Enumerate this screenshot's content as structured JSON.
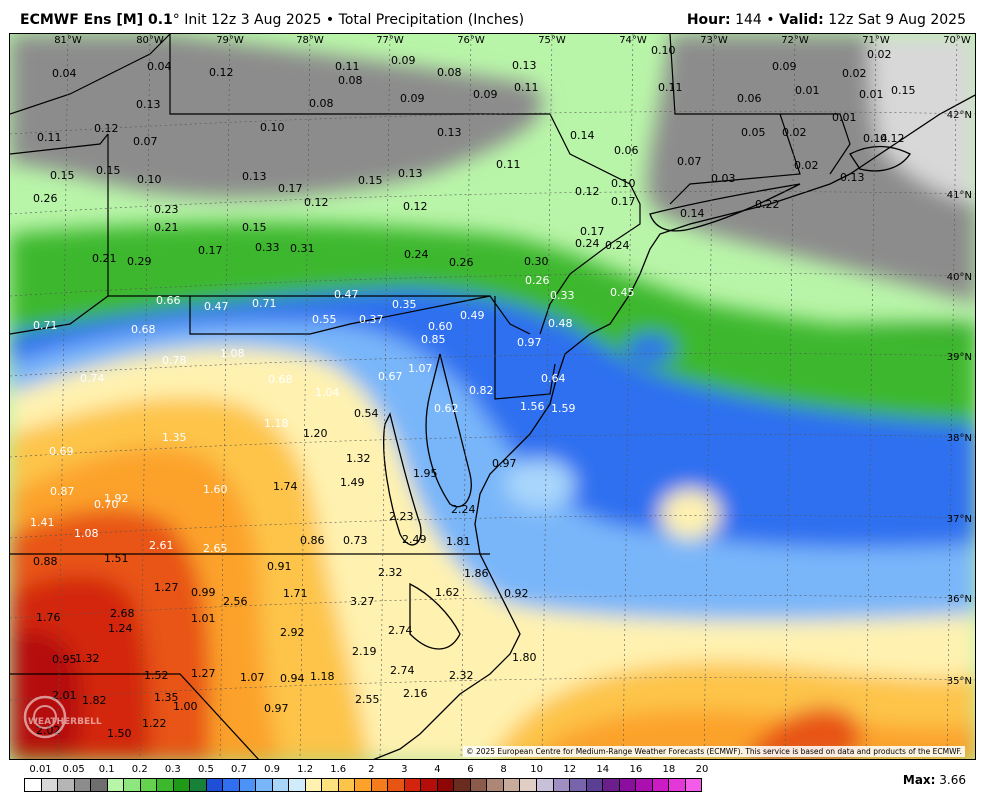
{
  "header": {
    "model": "ECMWF Ens [M] 0.1",
    "degree": "°",
    "init": "Init 12z 3 Aug 2025",
    "sep": "•",
    "product": "Total Precipitation (Inches)",
    "hour_label": "Hour:",
    "hour_value": "144",
    "valid_label": "Valid:",
    "valid_value": "12z Sat 9 Aug 2025"
  },
  "lon_labels": [
    "81°W",
    "80°W",
    "79°W",
    "78°W",
    "77°W",
    "76°W",
    "75°W",
    "74°W",
    "73°W",
    "72°W",
    "71°W",
    "70°W"
  ],
  "lat_labels": [
    "42°N",
    "41°N",
    "40°N",
    "39°N",
    "38°N",
    "37°N",
    "36°N",
    "35°N"
  ],
  "values": [
    "0.04",
    "0.04",
    "0.12",
    "0.11",
    "0.09",
    "0.08",
    "0.13",
    "0.10",
    "0.09",
    "0.02",
    "0.02",
    "0.13",
    "0.08",
    "0.08",
    "0.09",
    "0.09",
    "0.11",
    "0.11",
    "0.06",
    "0.01",
    "0.01",
    "0.15",
    "0.11",
    "0.12",
    "0.07",
    "0.10",
    "0.13",
    "0.14",
    "0.06",
    "0.05",
    "0.02",
    "0.01",
    "0.12",
    "0.15",
    "0.15",
    "0.10",
    "0.13",
    "0.17",
    "0.15",
    "0.13",
    "0.11",
    "0.07",
    "0.03",
    "0.02",
    "0.13",
    "0.14",
    "0.26",
    "0.23",
    "0.12",
    "0.12",
    "0.12",
    "0.10",
    "0.17",
    "0.14",
    "0.22",
    "0.21",
    "0.15",
    "0.17",
    "0.17",
    "0.24",
    "0.24",
    "0.21",
    "0.29",
    "0.33",
    "0.31",
    "0.24",
    "0.26",
    "0.30",
    "0.26",
    "0.33",
    "0.45",
    "0.66",
    "0.47",
    "0.71",
    "0.47",
    "0.35",
    "0.49",
    "0.71",
    "0.68",
    "0.55",
    "0.37",
    "0.60",
    "0.48",
    "0.85",
    "0.97",
    "0.78",
    "1.08",
    "0.74",
    "0.68",
    "0.67",
    "1.07",
    "0.64",
    "1.04",
    "0.82",
    "0.54",
    "0.62",
    "1.56",
    "1.59",
    "1.35",
    "1.18",
    "1.20",
    "0.69",
    "1.32",
    "0.97",
    "1.49",
    "1.95",
    "1.74",
    "1.60",
    "1.92",
    "0.87",
    "0.70",
    "2.23",
    "2.24",
    "1.41",
    "1.08",
    "0.86",
    "0.73",
    "2.49",
    "1.81",
    "2.61",
    "2.65",
    "1.51",
    "0.88",
    "0.91",
    "2.32",
    "1.86",
    "1.27",
    "0.99",
    "1.71",
    "1.62",
    "0.92",
    "2.56",
    "3.27",
    "2.68",
    "1.76",
    "1.24",
    "1.01",
    "2.92",
    "2.74",
    "0.95",
    "1.32",
    "2.19",
    "1.80",
    "1.52",
    "1.27",
    "1.07",
    "0.94",
    "1.18",
    "2.74",
    "2.32",
    "2.01",
    "1.82",
    "1.35",
    "1.00",
    "0.97",
    "2.55",
    "2.16",
    "2.02",
    "1.50",
    "1.22"
  ],
  "legend": {
    "labels": [
      "0.01",
      "0.05",
      "0.1",
      "0.2",
      "0.3",
      "0.5",
      "0.7",
      "0.9",
      "1.2",
      "1.6",
      "2",
      "3",
      "4",
      "6",
      "8",
      "10",
      "12",
      "14",
      "16",
      "18",
      "20"
    ],
    "colors": [
      "#ffffff",
      "#d8d8d8",
      "#b5b5b5",
      "#8c8c8c",
      "#6e6e6e",
      "#b9f5a9",
      "#8ee67e",
      "#64d24e",
      "#3cb82d",
      "#1f9a18",
      "#17813a",
      "#1e4fd6",
      "#2f6ff0",
      "#4c93f7",
      "#79b6f9",
      "#a8d6fb",
      "#d0ecfa",
      "#fff2b0",
      "#fde17e",
      "#fdc44a",
      "#fca22a",
      "#f57c1c",
      "#e85414",
      "#d3250d",
      "#b50d0a",
      "#8e0606",
      "#6b2c20",
      "#8a5b4a",
      "#ad8675",
      "#c9ab9c",
      "#e0cdc4",
      "#c8bfd8",
      "#9e8ec2",
      "#7764aa",
      "#5a3f94",
      "#6b1e8c",
      "#8a0f9e",
      "#ac0fb0",
      "#cc1bc4",
      "#e238d8",
      "#f25ce8"
    ]
  },
  "copyright": "© 2025 European Centre for Medium-Range Weather Forecasts (ECMWF). This service is based on data and products of the ECMWF.",
  "max": {
    "label": "Max:",
    "value": "3.66"
  },
  "watermark": "WEATHERBELL"
}
